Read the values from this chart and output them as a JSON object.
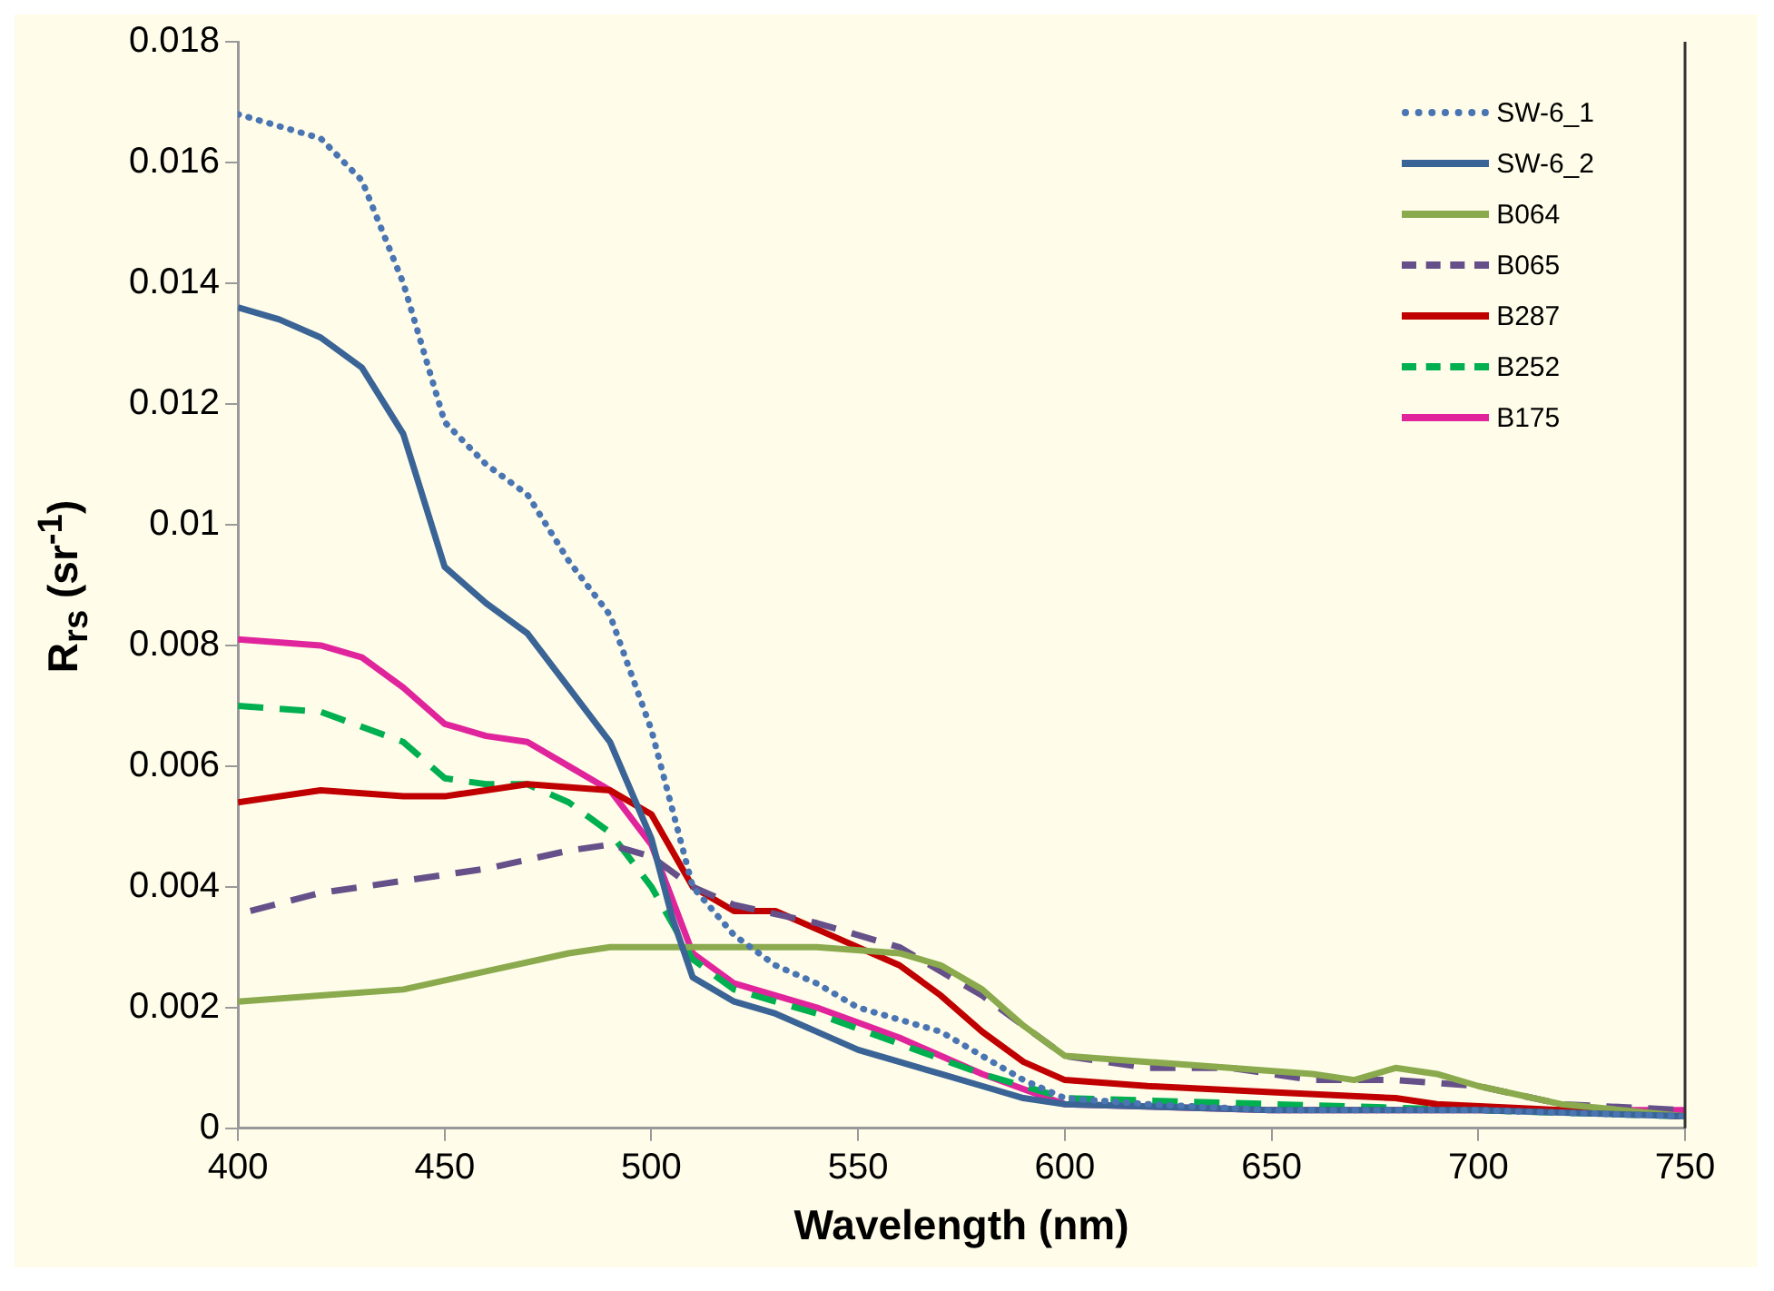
{
  "chart_data": {
    "type": "line",
    "xlabel": "Wavelength (nm)",
    "ylabel": "R$_{rs}$ (sr$^{-1}$)",
    "xlim": [
      400,
      750
    ],
    "xticks": [
      400,
      450,
      500,
      550,
      600,
      650,
      700,
      750
    ],
    "ylim": [
      0,
      0.018
    ],
    "yticks": [
      0,
      0.002,
      0.004,
      0.006,
      0.008,
      0.01,
      0.012,
      0.014,
      0.016,
      0.018
    ],
    "grid": false,
    "legend": "top right",
    "marker": "none",
    "series": [
      {
        "name": "SW-6_1",
        "color": "#4a75b3",
        "line_style": "dotted",
        "x": [
          400,
          420,
          430,
          440,
          450,
          460,
          470,
          480,
          490,
          500,
          510,
          520,
          530,
          540,
          550,
          560,
          570,
          580,
          590,
          600,
          620,
          650,
          700,
          750
        ],
        "values": [
          0.0168,
          0.0164,
          0.0157,
          0.014,
          0.0117,
          0.011,
          0.0105,
          0.0094,
          0.0085,
          0.0066,
          0.004,
          0.0032,
          0.0027,
          0.0024,
          0.002,
          0.0018,
          0.0016,
          0.0012,
          0.0008,
          0.0005,
          0.0004,
          0.0003,
          0.0003,
          0.0002
        ]
      },
      {
        "name": "SW-6_2",
        "color": "#3b6496",
        "line_style": "solid",
        "x": [
          400,
          410,
          420,
          430,
          440,
          450,
          460,
          470,
          480,
          490,
          500,
          505,
          510,
          520,
          530,
          540,
          550,
          560,
          570,
          580,
          590,
          600,
          650,
          700,
          750
        ],
        "values": [
          0.0136,
          0.0134,
          0.0131,
          0.0126,
          0.0115,
          0.0093,
          0.0087,
          0.0082,
          0.0073,
          0.0064,
          0.0048,
          0.0035,
          0.0025,
          0.0021,
          0.0019,
          0.0016,
          0.0013,
          0.0011,
          0.0009,
          0.0007,
          0.0005,
          0.0004,
          0.0003,
          0.0003,
          0.0002
        ]
      },
      {
        "name": "B064",
        "color": "#8aaa4d",
        "line_style": "solid",
        "x": [
          400,
          420,
          440,
          460,
          480,
          490,
          520,
          540,
          560,
          570,
          580,
          590,
          600,
          620,
          640,
          660,
          670,
          680,
          690,
          700,
          720,
          750
        ],
        "values": [
          0.0021,
          0.0022,
          0.0023,
          0.0026,
          0.0029,
          0.003,
          0.003,
          0.003,
          0.0029,
          0.0027,
          0.0023,
          0.0017,
          0.0012,
          0.0011,
          0.001,
          0.0009,
          0.0008,
          0.001,
          0.0009,
          0.0007,
          0.0004,
          0.0002
        ]
      },
      {
        "name": "B065",
        "color": "#65508a",
        "line_style": "dashed",
        "x": [
          403,
          420,
          440,
          460,
          480,
          490,
          500,
          510,
          520,
          540,
          560,
          580,
          600,
          620,
          640,
          660,
          680,
          700,
          720,
          750
        ],
        "values": [
          0.0036,
          0.0039,
          0.0041,
          0.0043,
          0.0046,
          0.0047,
          0.0045,
          0.004,
          0.0037,
          0.0034,
          0.003,
          0.0022,
          0.0012,
          0.001,
          0.001,
          0.0008,
          0.0008,
          0.0007,
          0.0004,
          0.0003
        ]
      },
      {
        "name": "B287",
        "color": "#c00000",
        "line_style": "solid",
        "x": [
          400,
          420,
          440,
          450,
          460,
          470,
          490,
          500,
          510,
          520,
          530,
          540,
          550,
          560,
          570,
          580,
          590,
          600,
          620,
          650,
          680,
          690,
          720,
          750
        ],
        "values": [
          0.0054,
          0.0056,
          0.0055,
          0.0055,
          0.0056,
          0.0057,
          0.0056,
          0.0052,
          0.004,
          0.0036,
          0.0036,
          0.0033,
          0.003,
          0.0027,
          0.0022,
          0.0016,
          0.0011,
          0.0008,
          0.0007,
          0.0006,
          0.0005,
          0.0004,
          0.0003,
          0.0002
        ]
      },
      {
        "name": "B252",
        "color": "#00b050",
        "line_style": "dashed",
        "x": [
          400,
          420,
          440,
          450,
          460,
          470,
          480,
          490,
          500,
          510,
          520,
          540,
          560,
          580,
          600,
          650,
          700,
          750
        ],
        "values": [
          0.007,
          0.0069,
          0.0064,
          0.0058,
          0.0057,
          0.0057,
          0.0054,
          0.0049,
          0.004,
          0.0028,
          0.0023,
          0.0019,
          0.0014,
          0.0009,
          0.0005,
          0.0004,
          0.0003,
          0.0002
        ]
      },
      {
        "name": "B175",
        "color": "#e0259c",
        "line_style": "solid",
        "x": [
          400,
          420,
          430,
          440,
          450,
          460,
          470,
          480,
          490,
          500,
          510,
          520,
          540,
          560,
          580,
          600,
          650,
          700,
          750
        ],
        "values": [
          0.0081,
          0.008,
          0.0078,
          0.0073,
          0.0067,
          0.0065,
          0.0064,
          0.006,
          0.0056,
          0.0047,
          0.0029,
          0.0024,
          0.002,
          0.0015,
          0.0009,
          0.0004,
          0.0003,
          0.0003,
          0.0003
        ]
      }
    ]
  }
}
